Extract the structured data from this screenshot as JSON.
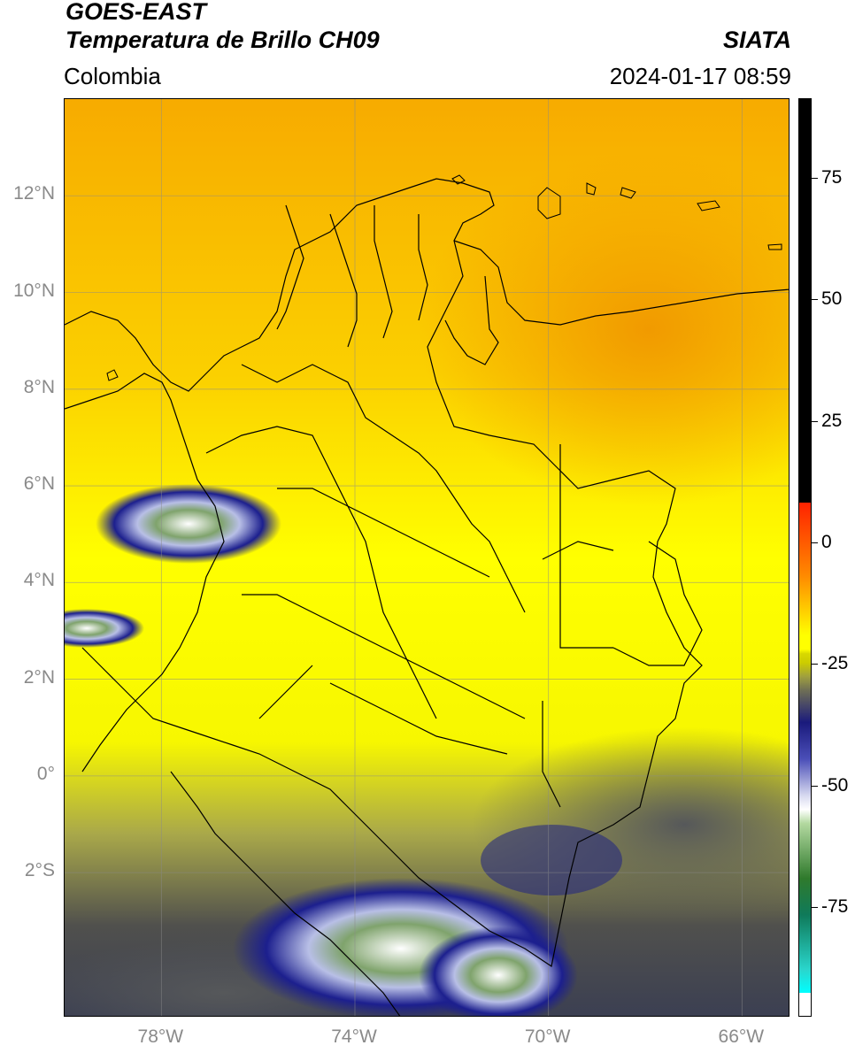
{
  "header": {
    "satellite": "GOES-EAST",
    "product": "Temperatura de Brillo CH09",
    "brand": "SIATA",
    "region": "Colombia",
    "timestamp": "2024-01-17 08:59"
  },
  "map": {
    "lat_range": [
      -5,
      14
    ],
    "lon_range": [
      -80,
      -65
    ],
    "lat_ticks": [
      {
        "value": 12,
        "label": "12°N"
      },
      {
        "value": 10,
        "label": "10°N"
      },
      {
        "value": 8,
        "label": "8°N"
      },
      {
        "value": 6,
        "label": "6°N"
      },
      {
        "value": 4,
        "label": "4°N"
      },
      {
        "value": 2,
        "label": "2°N"
      },
      {
        "value": 0,
        "label": "0°"
      },
      {
        "value": -2,
        "label": "2°S"
      }
    ],
    "lon_ticks": [
      {
        "value": -78,
        "label": "78°W"
      },
      {
        "value": -74,
        "label": "74°W"
      },
      {
        "value": -70,
        "label": "70°W"
      },
      {
        "value": -66,
        "label": "66°W"
      }
    ],
    "features": [
      {
        "name": "Caribbean warm zone",
        "color": "#f5a000"
      },
      {
        "name": "Colombian interior",
        "color": "#ffff00"
      },
      {
        "name": "Pacific cloud cluster",
        "color": "#1a1a8c"
      },
      {
        "name": "Amazon cloud cluster",
        "color": "#1a1a8c"
      }
    ]
  },
  "colorbar": {
    "ticks": [
      {
        "value": 75,
        "label": "75"
      },
      {
        "value": 50,
        "label": "50"
      },
      {
        "value": 25,
        "label": "25"
      },
      {
        "value": 0,
        "label": "0"
      },
      {
        "value": -25,
        "label": "-25"
      },
      {
        "value": -50,
        "label": "-50"
      },
      {
        "value": -75,
        "label": "-75"
      }
    ]
  }
}
